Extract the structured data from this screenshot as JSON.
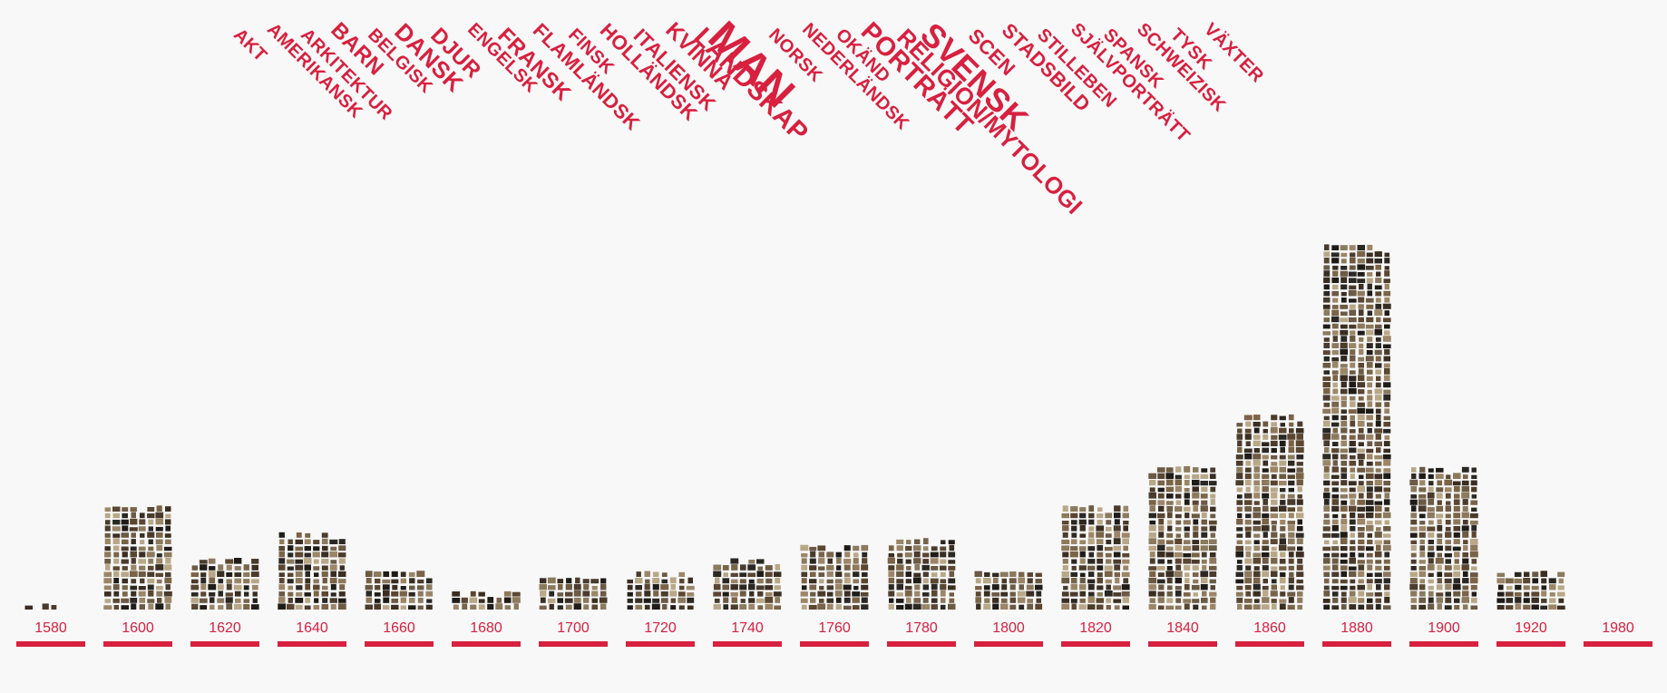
{
  "colors": {
    "accent": "#d8203f",
    "background": "#f8f8f8",
    "thumbnail_tones": [
      "#3a2e22",
      "#5a4631",
      "#7a6448",
      "#9c8668",
      "#2b2824",
      "#6b5a44",
      "#b8a888",
      "#4a3b2c",
      "#8c7a5e",
      "#1f1c18"
    ]
  },
  "tags": [
    {
      "label": "AKT",
      "weight": 1
    },
    {
      "label": "AMERIKANSK",
      "weight": 1
    },
    {
      "label": "ARKITEKTUR",
      "weight": 1
    },
    {
      "label": "BARN",
      "weight": 1.2
    },
    {
      "label": "BELGISK",
      "weight": 1
    },
    {
      "label": "DANSK",
      "weight": 1.3
    },
    {
      "label": "DJUR",
      "weight": 1.2
    },
    {
      "label": "ENGELSK",
      "weight": 1
    },
    {
      "label": "FRANSK",
      "weight": 1.2
    },
    {
      "label": "FLAMLÄNDSK",
      "weight": 1.1
    },
    {
      "label": "FINSK",
      "weight": 1
    },
    {
      "label": "HOLLÄNDSK",
      "weight": 1.1
    },
    {
      "label": "ITALIENSK",
      "weight": 1.1
    },
    {
      "label": "KVINNA",
      "weight": 1.2
    },
    {
      "label": "LANDSKAP",
      "weight": 1.45
    },
    {
      "label": "MAN",
      "weight": 2.4
    },
    {
      "label": "NORSK",
      "weight": 1
    },
    {
      "label": "NEDERLÄNDSK",
      "weight": 1
    },
    {
      "label": "OKÄND",
      "weight": 1
    },
    {
      "label": "PORTRÄTT",
      "weight": 1.45
    },
    {
      "label": "RELIGION/MYTOLOGI",
      "weight": 1.3
    },
    {
      "label": "SVENSK",
      "weight": 1.8
    },
    {
      "label": "SCEN",
      "weight": 1.1
    },
    {
      "label": "STADSBILD",
      "weight": 1.1
    },
    {
      "label": "STILLEBEN",
      "weight": 1
    },
    {
      "label": "SJÄLVPORTRÄTT",
      "weight": 1
    },
    {
      "label": "SPANSK",
      "weight": 1
    },
    {
      "label": "SCHWEIZISK",
      "weight": 1
    },
    {
      "label": "TYSK",
      "weight": 1
    },
    {
      "label": "VÄXTER",
      "weight": 1
    }
  ],
  "chart_data": {
    "type": "bar",
    "categories": [
      "1580",
      "1600",
      "1620",
      "1640",
      "1660",
      "1680",
      "1700",
      "1720",
      "1740",
      "1760",
      "1780",
      "1800",
      "1820",
      "1840",
      "1860",
      "1880",
      "1900",
      "1920",
      "1980"
    ],
    "values": [
      5,
      80,
      40,
      60,
      32,
      14,
      26,
      32,
      38,
      52,
      54,
      32,
      82,
      110,
      152,
      280,
      110,
      32,
      4
    ],
    "xlabel": "",
    "ylabel": "",
    "ylim": [
      0,
      280
    ],
    "columns_per_stack": [
      5,
      8,
      8,
      8,
      8,
      8,
      8,
      8,
      8,
      8,
      8,
      8,
      8,
      8,
      8,
      8,
      8,
      8,
      2
    ],
    "bar_style": "stacked painting thumbnails",
    "grid": false,
    "legend": "none"
  }
}
